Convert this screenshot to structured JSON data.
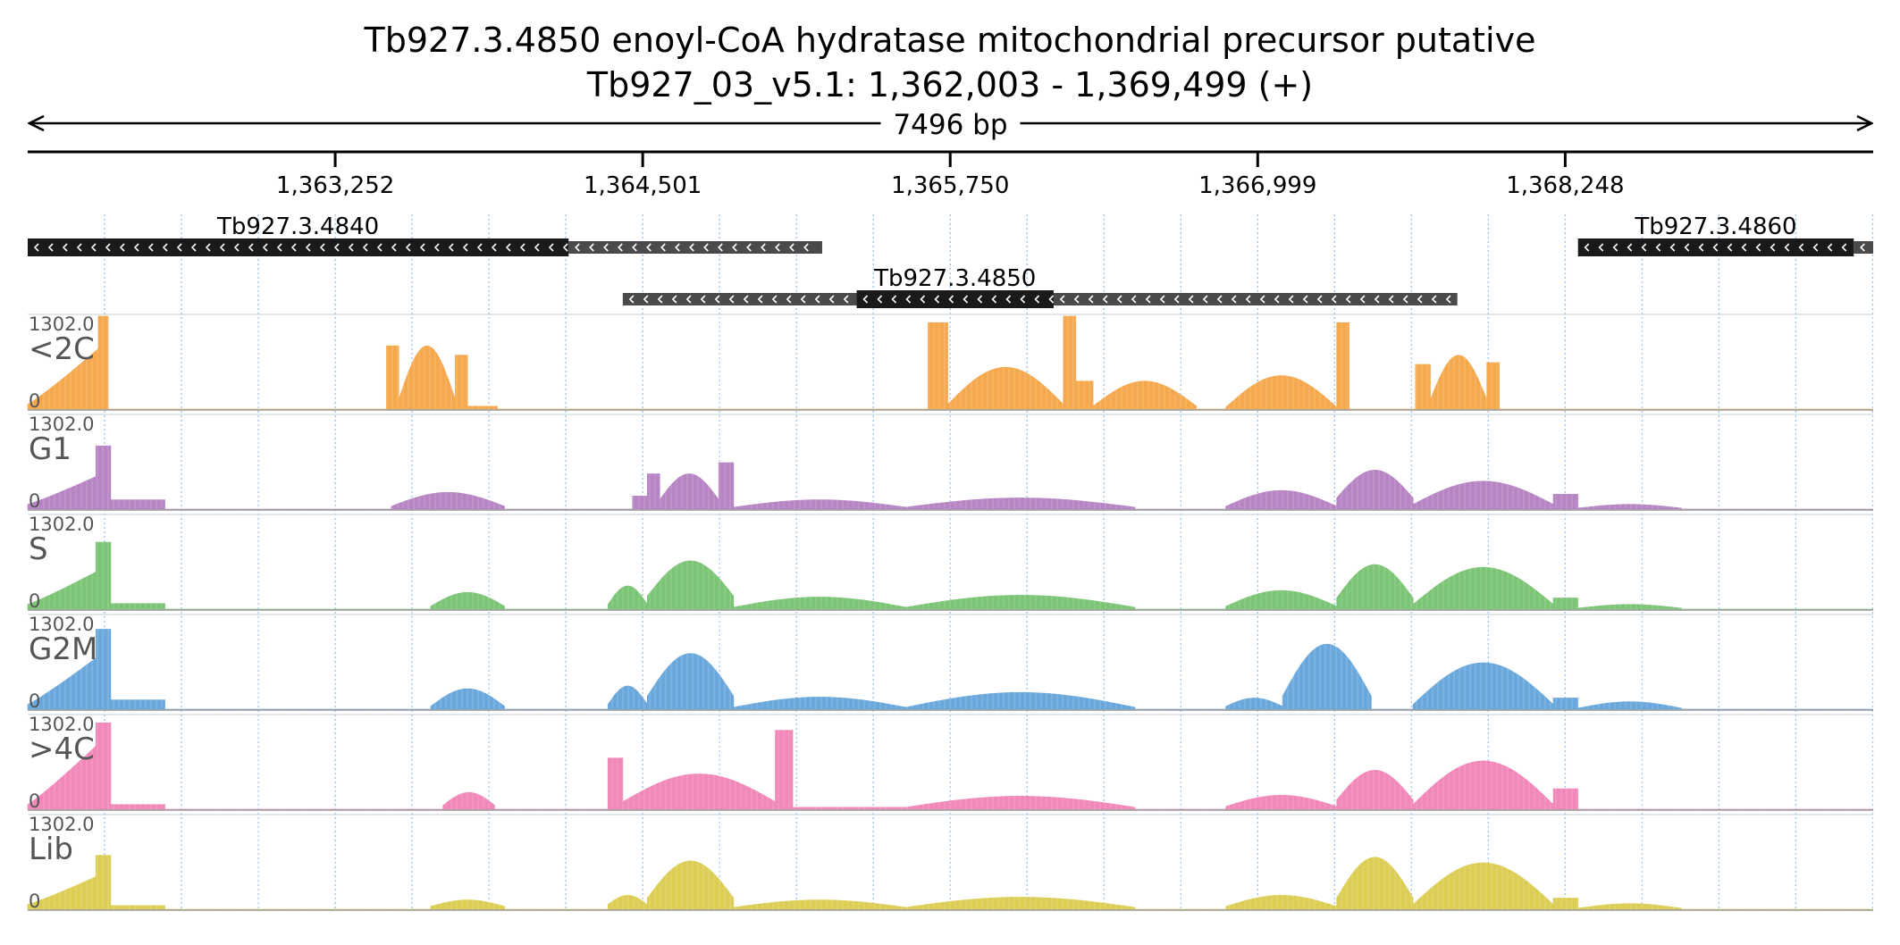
{
  "title": "Tb927.3.4850  enoyl-CoA hydratase  mitochondrial precursor  putative",
  "subtitle": "Tb927_03_v5.1: 1,362,003 - 1,369,499 (+)",
  "span_label": "7496 bp",
  "colors": {
    "<2C": "#f5a94e",
    "G1": "#b784c4",
    "S": "#7cc576",
    "G2M": "#6aa8dc",
    ">4C": "#f188b9",
    "Lib": "#dccd54",
    "gene_cds": "#1a1a1a",
    "gene_utr": "#4a4a4a",
    "grid": "#9ec5e8"
  },
  "chart_data": {
    "type": "area",
    "chromosome": "Tb927_03_v5.1",
    "xlim": [
      1362003,
      1369499
    ],
    "ticks": [
      {
        "pos": 1363252,
        "label": "1,363,252"
      },
      {
        "pos": 1364501,
        "label": "1,364,501"
      },
      {
        "pos": 1365750,
        "label": "1,365,750"
      },
      {
        "pos": 1366999,
        "label": "1,366,999"
      },
      {
        "pos": 1368248,
        "label": "1,368,248"
      }
    ],
    "genes": [
      {
        "name": "Tb927.3.4840",
        "strand": "-",
        "row": 0,
        "cds": [
          1362003,
          1364200
        ],
        "utr": [
          [
            1364200,
            1365230
          ]
        ]
      },
      {
        "name": "Tb927.3.4850",
        "strand": "-",
        "row": 1,
        "cds": [
          1365370,
          1366170
        ],
        "utr": [
          [
            1364420,
            1365370
          ],
          [
            1366170,
            1367810
          ]
        ]
      },
      {
        "name": "Tb927.3.4860",
        "strand": "-",
        "row": 0,
        "cds": [
          1368300,
          1369420
        ],
        "utr": [
          [
            1369420,
            1369499
          ]
        ]
      }
    ],
    "ylim": [
      0,
      1302.0
    ],
    "ymax_label": "1302.0",
    "ymin_label": "0",
    "series": [
      {
        "name": "<2C",
        "blocks": [
          {
            "s": 1362003,
            "e": 1362290,
            "sh": "ramp",
            "p": 0.65,
            "lo": 0.05
          },
          {
            "s": 1362290,
            "e": 1362330,
            "sh": "flat",
            "p": 1.0
          },
          {
            "s": 1363460,
            "e": 1363510,
            "sh": "flat",
            "p": 0.68
          },
          {
            "s": 1363510,
            "e": 1363740,
            "sh": "hump",
            "p": 0.68,
            "lo": 0.1
          },
          {
            "s": 1363740,
            "e": 1363790,
            "sh": "flat",
            "p": 0.58
          },
          {
            "s": 1363790,
            "e": 1363910,
            "sh": "flat",
            "p": 0.03
          },
          {
            "s": 1365660,
            "e": 1365740,
            "sh": "flat",
            "p": 0.93
          },
          {
            "s": 1365740,
            "e": 1366210,
            "sh": "hump",
            "p": 0.45,
            "lo": 0.05
          },
          {
            "s": 1366210,
            "e": 1366260,
            "sh": "flat",
            "p": 1.0
          },
          {
            "s": 1366260,
            "e": 1366330,
            "sh": "flat",
            "p": 0.3
          },
          {
            "s": 1366330,
            "e": 1366750,
            "sh": "hump",
            "p": 0.3,
            "lo": 0.03
          },
          {
            "s": 1366870,
            "e": 1367320,
            "sh": "hump",
            "p": 0.36,
            "lo": 0.02
          },
          {
            "s": 1367320,
            "e": 1367370,
            "sh": "flat",
            "p": 0.93
          },
          {
            "s": 1367640,
            "e": 1367700,
            "sh": "flat",
            "p": 0.48
          },
          {
            "s": 1367700,
            "e": 1367930,
            "sh": "hump",
            "p": 0.58,
            "lo": 0.1
          },
          {
            "s": 1367930,
            "e": 1367980,
            "sh": "flat",
            "p": 0.5
          }
        ]
      },
      {
        "name": "G1",
        "blocks": [
          {
            "s": 1362003,
            "e": 1362280,
            "sh": "ramp",
            "p": 0.35,
            "lo": 0.05
          },
          {
            "s": 1362280,
            "e": 1362340,
            "sh": "flat",
            "p": 0.68
          },
          {
            "s": 1362340,
            "e": 1362560,
            "sh": "flat",
            "p": 0.1
          },
          {
            "s": 1363480,
            "e": 1363940,
            "sh": "hump",
            "p": 0.18,
            "lo": 0.03
          },
          {
            "s": 1364460,
            "e": 1364520,
            "sh": "flat",
            "p": 0.14
          },
          {
            "s": 1364520,
            "e": 1364570,
            "sh": "flat",
            "p": 0.38
          },
          {
            "s": 1364570,
            "e": 1364810,
            "sh": "hump",
            "p": 0.38,
            "lo": 0.1
          },
          {
            "s": 1364810,
            "e": 1364870,
            "sh": "flat",
            "p": 0.5
          },
          {
            "s": 1364870,
            "e": 1365570,
            "sh": "hump",
            "p": 0.1,
            "lo": 0.02
          },
          {
            "s": 1365570,
            "e": 1366500,
            "sh": "hump",
            "p": 0.12,
            "lo": 0.02
          },
          {
            "s": 1366870,
            "e": 1367320,
            "sh": "hump",
            "p": 0.2,
            "lo": 0.03
          },
          {
            "s": 1367320,
            "e": 1367630,
            "sh": "hump",
            "p": 0.42,
            "lo": 0.12
          },
          {
            "s": 1367630,
            "e": 1368200,
            "sh": "hump",
            "p": 0.3,
            "lo": 0.05
          },
          {
            "s": 1368200,
            "e": 1368300,
            "sh": "flat",
            "p": 0.16
          },
          {
            "s": 1368300,
            "e": 1368720,
            "sh": "hump",
            "p": 0.05,
            "lo": 0.01
          }
        ]
      },
      {
        "name": "S",
        "blocks": [
          {
            "s": 1362003,
            "e": 1362280,
            "sh": "ramp",
            "p": 0.4,
            "lo": 0.05
          },
          {
            "s": 1362280,
            "e": 1362340,
            "sh": "flat",
            "p": 0.72
          },
          {
            "s": 1362340,
            "e": 1362560,
            "sh": "flat",
            "p": 0.06
          },
          {
            "s": 1363640,
            "e": 1363940,
            "sh": "hump",
            "p": 0.18,
            "lo": 0.03
          },
          {
            "s": 1364360,
            "e": 1364520,
            "sh": "hump",
            "p": 0.25,
            "lo": 0.05
          },
          {
            "s": 1364520,
            "e": 1364870,
            "sh": "hump",
            "p": 0.52,
            "lo": 0.14
          },
          {
            "s": 1364870,
            "e": 1365570,
            "sh": "hump",
            "p": 0.13,
            "lo": 0.02
          },
          {
            "s": 1365570,
            "e": 1366500,
            "sh": "hump",
            "p": 0.15,
            "lo": 0.02
          },
          {
            "s": 1366870,
            "e": 1367320,
            "sh": "hump",
            "p": 0.2,
            "lo": 0.03
          },
          {
            "s": 1367320,
            "e": 1367630,
            "sh": "hump",
            "p": 0.48,
            "lo": 0.12
          },
          {
            "s": 1367630,
            "e": 1368200,
            "sh": "hump",
            "p": 0.45,
            "lo": 0.05
          },
          {
            "s": 1368200,
            "e": 1368300,
            "sh": "flat",
            "p": 0.12
          },
          {
            "s": 1368300,
            "e": 1368720,
            "sh": "hump",
            "p": 0.05,
            "lo": 0.01
          }
        ]
      },
      {
        "name": "G2M",
        "blocks": [
          {
            "s": 1362003,
            "e": 1362280,
            "sh": "ramp",
            "p": 0.55,
            "lo": 0.05
          },
          {
            "s": 1362280,
            "e": 1362340,
            "sh": "flat",
            "p": 0.86
          },
          {
            "s": 1362340,
            "e": 1362560,
            "sh": "flat",
            "p": 0.1
          },
          {
            "s": 1363640,
            "e": 1363940,
            "sh": "hump",
            "p": 0.22,
            "lo": 0.03
          },
          {
            "s": 1364360,
            "e": 1364520,
            "sh": "hump",
            "p": 0.25,
            "lo": 0.05
          },
          {
            "s": 1364520,
            "e": 1364870,
            "sh": "hump",
            "p": 0.6,
            "lo": 0.14
          },
          {
            "s": 1364870,
            "e": 1365570,
            "sh": "hump",
            "p": 0.13,
            "lo": 0.02
          },
          {
            "s": 1365570,
            "e": 1366500,
            "sh": "hump",
            "p": 0.18,
            "lo": 0.02
          },
          {
            "s": 1366870,
            "e": 1367100,
            "sh": "hump",
            "p": 0.12,
            "lo": 0.03
          },
          {
            "s": 1367100,
            "e": 1367460,
            "sh": "hump",
            "p": 0.7,
            "lo": 0.14
          },
          {
            "s": 1367630,
            "e": 1368200,
            "sh": "hump",
            "p": 0.5,
            "lo": 0.05
          },
          {
            "s": 1368200,
            "e": 1368300,
            "sh": "flat",
            "p": 0.12
          },
          {
            "s": 1368300,
            "e": 1368720,
            "sh": "hump",
            "p": 0.08,
            "lo": 0.01
          }
        ]
      },
      {
        "name": ">4C",
        "blocks": [
          {
            "s": 1362003,
            "e": 1362280,
            "sh": "ramp",
            "p": 0.68,
            "lo": 0.05
          },
          {
            "s": 1362280,
            "e": 1362340,
            "sh": "flat",
            "p": 0.93
          },
          {
            "s": 1362340,
            "e": 1362560,
            "sh": "flat",
            "p": 0.05
          },
          {
            "s": 1363690,
            "e": 1363900,
            "sh": "hump",
            "p": 0.18,
            "lo": 0.04
          },
          {
            "s": 1364360,
            "e": 1364420,
            "sh": "flat",
            "p": 0.55
          },
          {
            "s": 1364420,
            "e": 1365040,
            "sh": "hump",
            "p": 0.38,
            "lo": 0.08
          },
          {
            "s": 1365040,
            "e": 1365110,
            "sh": "flat",
            "p": 0.85
          },
          {
            "s": 1365110,
            "e": 1365570,
            "sh": "flat",
            "p": 0.02
          },
          {
            "s": 1365570,
            "e": 1366500,
            "sh": "hump",
            "p": 0.14,
            "lo": 0.02
          },
          {
            "s": 1366870,
            "e": 1367320,
            "sh": "hump",
            "p": 0.15,
            "lo": 0.03
          },
          {
            "s": 1367320,
            "e": 1367630,
            "sh": "hump",
            "p": 0.42,
            "lo": 0.1
          },
          {
            "s": 1367630,
            "e": 1368200,
            "sh": "hump",
            "p": 0.52,
            "lo": 0.05
          },
          {
            "s": 1368200,
            "e": 1368300,
            "sh": "flat",
            "p": 0.22
          }
        ]
      },
      {
        "name": "Lib",
        "blocks": [
          {
            "s": 1362003,
            "e": 1362280,
            "sh": "ramp",
            "p": 0.35,
            "lo": 0.05
          },
          {
            "s": 1362280,
            "e": 1362340,
            "sh": "flat",
            "p": 0.58
          },
          {
            "s": 1362340,
            "e": 1362560,
            "sh": "flat",
            "p": 0.04
          },
          {
            "s": 1363640,
            "e": 1363940,
            "sh": "hump",
            "p": 0.1,
            "lo": 0.03
          },
          {
            "s": 1364360,
            "e": 1364520,
            "sh": "hump",
            "p": 0.15,
            "lo": 0.05
          },
          {
            "s": 1364520,
            "e": 1364870,
            "sh": "hump",
            "p": 0.52,
            "lo": 0.12
          },
          {
            "s": 1364870,
            "e": 1365570,
            "sh": "hump",
            "p": 0.1,
            "lo": 0.02
          },
          {
            "s": 1365570,
            "e": 1366500,
            "sh": "hump",
            "p": 0.13,
            "lo": 0.02
          },
          {
            "s": 1366870,
            "e": 1367320,
            "sh": "hump",
            "p": 0.15,
            "lo": 0.03
          },
          {
            "s": 1367320,
            "e": 1367630,
            "sh": "hump",
            "p": 0.56,
            "lo": 0.12
          },
          {
            "s": 1367630,
            "e": 1368200,
            "sh": "hump",
            "p": 0.5,
            "lo": 0.05
          },
          {
            "s": 1368200,
            "e": 1368300,
            "sh": "flat",
            "p": 0.12
          },
          {
            "s": 1368300,
            "e": 1368720,
            "sh": "hump",
            "p": 0.06,
            "lo": 0.01
          }
        ]
      }
    ]
  }
}
